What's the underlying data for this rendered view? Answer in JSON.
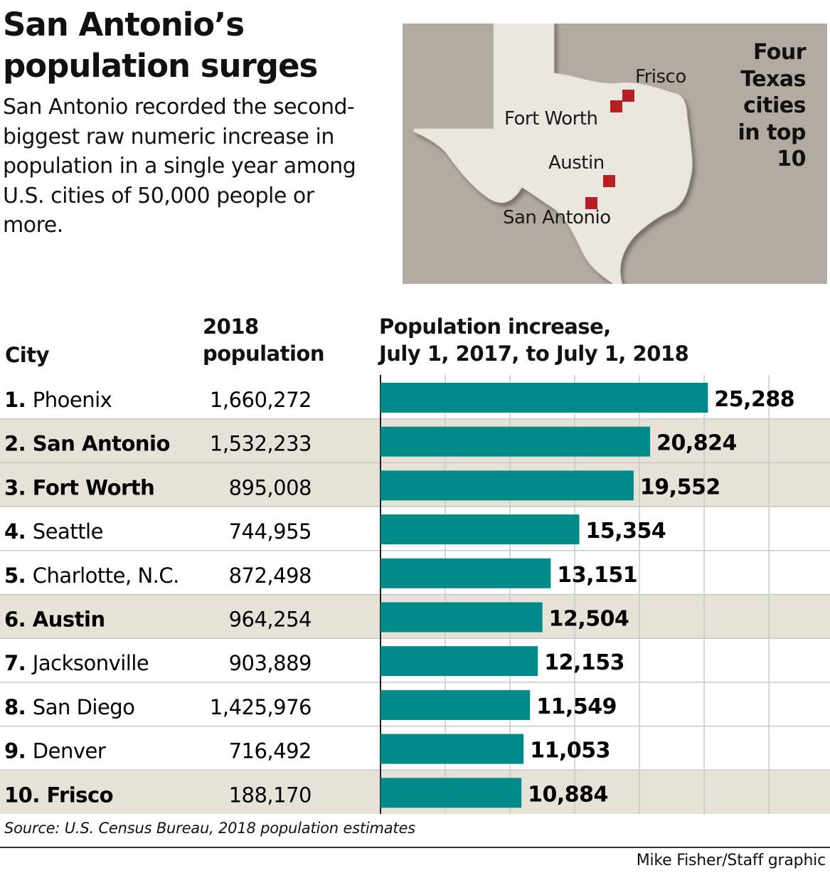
{
  "headline": {
    "title_line1": "San Antonio’s",
    "title_line2": "population surges",
    "subtitle": "San Antonio recorded the second-biggest raw numeric increase in population in a single year among U.S. cities of 50,000 people or more."
  },
  "map": {
    "caption_lines": [
      "Four",
      "Texas",
      "cities",
      "in top",
      "10"
    ],
    "cities": [
      "Frisco",
      "Fort Worth",
      "Austin",
      "San Antonio"
    ],
    "colors": {
      "background": "#b3aba1",
      "state": "#ebe7df",
      "marker": "#b81f24"
    }
  },
  "columns": {
    "city": "City",
    "population_line1": "2018",
    "population_line2": "population",
    "increase_line1": "Population increase,",
    "increase_line2": "July 1, 2017, to July 1, 2018"
  },
  "chart_data": {
    "type": "bar",
    "orientation": "horizontal",
    "categories": [
      "Phoenix",
      "San Antonio",
      "Fort Worth",
      "Seattle",
      "Charlotte, N.C.",
      "Austin",
      "Jacksonville",
      "San Diego",
      "Denver",
      "Frisco"
    ],
    "ranks": [
      "1.",
      "2.",
      "3.",
      "4.",
      "5.",
      "6.",
      "7.",
      "8.",
      "9.",
      "10."
    ],
    "population_2018": [
      "1,660,272",
      "1,532,233",
      "895,008",
      "744,955",
      "872,498",
      "964,254",
      "903,889",
      "1,425,976",
      "716,492",
      "188,170"
    ],
    "highlighted": [
      false,
      true,
      true,
      false,
      false,
      true,
      false,
      false,
      false,
      true
    ],
    "values": [
      25288,
      20824,
      19552,
      15354,
      13151,
      12504,
      12153,
      11549,
      11053,
      10884
    ],
    "value_labels": [
      "25,288",
      "20,824",
      "19,552",
      "15,354",
      "13,151",
      "12,504",
      "12,153",
      "11,549",
      "11,053",
      "10,884"
    ],
    "xlim": [
      0,
      35000
    ],
    "grid": true,
    "colors": {
      "bar": "#008b8b",
      "highlight_row": "#e7e2d8",
      "grid": "#c9c9c9"
    }
  },
  "footer": {
    "source": "Source: U.S. Census Bureau, 2018 population estimates",
    "credit": "Mike Fisher/Staff graphic"
  }
}
